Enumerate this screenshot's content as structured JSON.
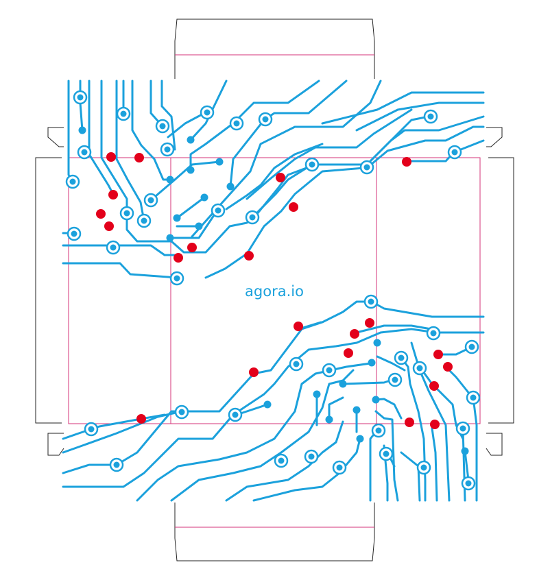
{
  "logo": {
    "text": "agora.io"
  },
  "colors": {
    "trace": "#1ba1dc",
    "red_node": "#e3001b",
    "cut_line": "#222222",
    "fold_line": "#d4337a"
  }
}
